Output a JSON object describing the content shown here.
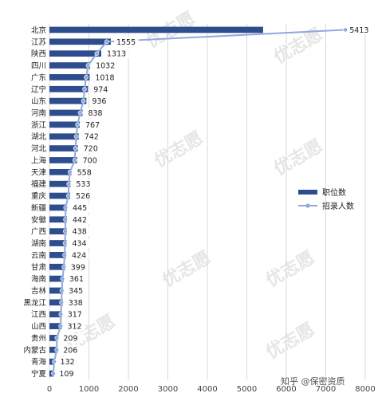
{
  "watermark": "优志愿",
  "credit": "知乎 @保密资质",
  "chart_data": {
    "type": "bar",
    "orientation": "horizontal",
    "categories": [
      "北京",
      "江苏",
      "陕西",
      "四川",
      "广东",
      "辽宁",
      "山东",
      "河南",
      "浙江",
      "湖北",
      "河北",
      "上海",
      "天津",
      "福建",
      "重庆",
      "新疆",
      "安徽",
      "广西",
      "湖南",
      "云南",
      "甘肃",
      "海南",
      "吉林",
      "黑龙江",
      "江西",
      "山西",
      "贵州",
      "内蒙古",
      "青海",
      "宁夏"
    ],
    "series": [
      {
        "name": "职位数",
        "type": "bar",
        "color": "#2e4d8f",
        "values": [
          5413,
          1555,
          1313,
          1032,
          1018,
          974,
          936,
          838,
          767,
          742,
          720,
          700,
          558,
          533,
          526,
          445,
          442,
          438,
          434,
          424,
          399,
          361,
          345,
          338,
          317,
          312,
          209,
          206,
          132,
          109
        ]
      },
      {
        "name": "招录人数",
        "type": "line",
        "color": "#8faadc",
        "values": [
          7500,
          1450,
          1200,
          980,
          930,
          890,
          860,
          780,
          710,
          680,
          660,
          640,
          520,
          490,
          480,
          410,
          405,
          400,
          395,
          385,
          365,
          330,
          315,
          305,
          290,
          285,
          190,
          185,
          120,
          100
        ]
      }
    ],
    "data_labels": [
      5413,
      1555,
      1313,
      1032,
      1018,
      974,
      936,
      838,
      767,
      742,
      720,
      700,
      558,
      533,
      526,
      445,
      442,
      438,
      434,
      424,
      399,
      361,
      345,
      338,
      317,
      312,
      209,
      206,
      132,
      109
    ],
    "xlim": [
      0,
      8000
    ],
    "xticks": [
      0,
      1000,
      2000,
      3000,
      4000,
      5000,
      6000,
      7000,
      8000
    ],
    "grid": true,
    "legend_position": "right"
  }
}
